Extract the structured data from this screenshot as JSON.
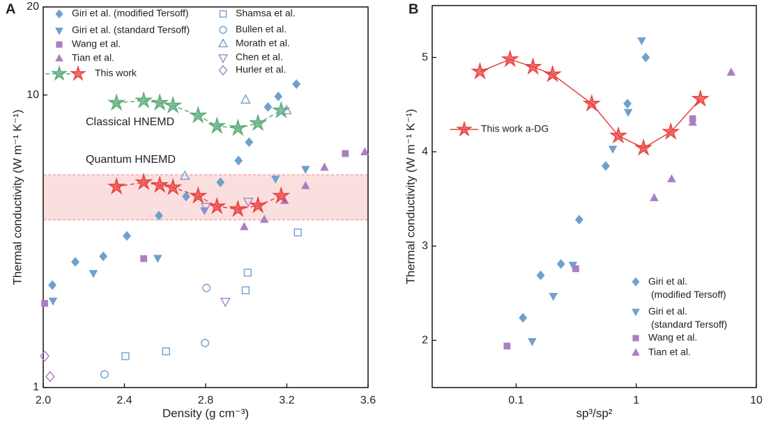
{
  "chart_data": [
    {
      "type": "scatter",
      "panel": "A",
      "xlabel": "Density (g cm⁻³)",
      "ylabel": "Thermal conductivity (W m⁻¹ K⁻¹)",
      "xlim": [
        2.0,
        3.6
      ],
      "ylim": [
        1,
        20
      ],
      "yscale": "log",
      "xticks": [
        {
          "value": 2,
          "label": "2.0"
        },
        2.4,
        2.8,
        3.2,
        3.6
      ],
      "yticks": [
        1,
        10,
        20
      ],
      "band": [
        3.74,
        5.34
      ],
      "band_color": "#e8403f",
      "annotations": [
        {
          "text": "Classical HNEMD",
          "color": "#5aa978"
        },
        {
          "text": "Quantum HNEMD",
          "color": "#e8403f"
        }
      ],
      "series": [
        {
          "name": "Giri et al. (modified Tersoff)",
          "marker": "diamond",
          "filled": true,
          "color": "#6fa0d0",
          "x": [
            2.045,
            2.158,
            2.296,
            2.412,
            2.57,
            2.704,
            2.873,
            2.962,
            3.014,
            3.107,
            3.158,
            3.247
          ],
          "values": [
            2.24,
            2.69,
            2.81,
            3.3,
            3.87,
            4.5,
            5.03,
            5.97,
            6.9,
            9.1,
            9.89,
            10.9
          ]
        },
        {
          "name": "Giri et al. (standard Tersoff)",
          "marker": "triangle-down",
          "filled": true,
          "color": "#6fa0d0",
          "x": [
            2.048,
            2.247,
            2.564,
            2.794,
            3.144,
            3.292
          ],
          "values": [
            1.98,
            2.46,
            2.77,
            4.03,
            5.17,
            5.58
          ]
        },
        {
          "name": "Wang et al.",
          "marker": "square",
          "filled": true,
          "color": "#a97fc4",
          "x": [
            2.007,
            2.495,
            3.488
          ],
          "values": [
            1.94,
            2.76,
            6.31
          ]
        },
        {
          "name": "Tian et al.",
          "marker": "triangle",
          "filled": true,
          "color": "#a97fc4",
          "x": [
            2.99,
            3.089,
            3.189,
            3.292,
            3.385,
            3.584
          ],
          "values": [
            3.54,
            3.75,
            4.35,
            4.89,
            5.65,
            6.38
          ]
        },
        {
          "name": "This work",
          "marker": "star",
          "filled": true,
          "color": "#5aa978",
          "line": "dashed",
          "x": [
            2.361,
            2.495,
            2.574,
            2.639,
            2.763,
            2.856,
            2.959,
            3.058,
            3.172
          ],
          "values": [
            9.4,
            9.57,
            9.4,
            9.2,
            8.51,
            7.83,
            7.7,
            8.01,
            8.85
          ]
        },
        {
          "marker": "star",
          "filled": true,
          "color": "#e8403f",
          "line": "dashed",
          "x": [
            2.361,
            2.495,
            2.574,
            2.639,
            2.763,
            2.856,
            2.959,
            3.058,
            3.172
          ],
          "values": [
            4.86,
            5.03,
            4.92,
            4.83,
            4.52,
            4.16,
            4.07,
            4.19,
            4.52
          ]
        },
        {
          "name": "Shamsa et al.",
          "marker": "square",
          "filled": false,
          "color": "#6fa0d0",
          "x": [
            2.405,
            2.605,
            2.997,
            3.007,
            3.254
          ],
          "values": [
            1.28,
            1.33,
            2.15,
            2.47,
            3.39
          ]
        },
        {
          "name": "Bullen et al.",
          "marker": "circle",
          "filled": false,
          "color": "#6fa0d0",
          "x": [
            2.302,
            2.797,
            2.804
          ],
          "values": [
            1.11,
            1.42,
            2.19
          ]
        },
        {
          "name": "Morath et al.",
          "marker": "triangle",
          "filled": false,
          "color": "#6fa0d0",
          "x": [
            2.698,
            2.997,
            3.199
          ],
          "values": [
            5.28,
            9.62,
            8.85
          ]
        },
        {
          "name": "Chen et al.",
          "marker": "triangle-down",
          "filled": false,
          "color": "#a97fc4",
          "x": [
            2.897,
            3.01,
            2.801
          ],
          "values": [
            1.97,
            4.33,
            4.16
          ]
        },
        {
          "name": "Hurler et al.",
          "marker": "diamond",
          "filled": false,
          "color": "#a97fc4",
          "x": [
            2.007,
            2.034
          ],
          "values": [
            1.28,
            1.09
          ]
        }
      ]
    },
    {
      "type": "scatter",
      "panel": "B",
      "xlabel": "sp³/sp²",
      "ylabel": "Thermal conductivity (W m⁻¹ K⁻¹)",
      "xlim": [
        0.02,
        10
      ],
      "ylim": [
        1.5,
        5.55
      ],
      "xscale": "log",
      "xticks": [
        0.1,
        1,
        10
      ],
      "yticks": [
        2,
        3,
        4,
        5
      ],
      "series": [
        {
          "name": "Giri et al. (modified Tersoff)",
          "marker": "diamond",
          "filled": true,
          "color": "#6fa0d0",
          "x": [
            0.114,
            0.16,
            0.236,
            0.335,
            0.557,
            0.845,
            1.2
          ],
          "values": [
            2.24,
            2.69,
            2.81,
            3.28,
            3.85,
            4.51,
            5.0
          ]
        },
        {
          "name": "Giri et al. (standard Tersoff)",
          "marker": "triangle-down",
          "filled": true,
          "color": "#6fa0d0",
          "x": [
            0.136,
            0.204,
            0.297,
            0.638,
            0.857,
            1.11
          ],
          "values": [
            1.99,
            2.47,
            2.8,
            4.03,
            4.42,
            5.18
          ]
        },
        {
          "name": "Wang et al.",
          "marker": "square",
          "filled": true,
          "color": "#a97fc4",
          "x": [
            0.084,
            0.313,
            2.95
          ],
          "values": [
            1.94,
            2.76,
            4.35
          ]
        },
        {
          "name": "Tian et al.",
          "marker": "triangle",
          "filled": true,
          "color": "#a97fc4",
          "x": [
            1.41,
            1.97,
            2.95,
            6.17
          ],
          "values": [
            3.51,
            3.71,
            4.31,
            4.84
          ]
        },
        {
          "name": "This work a-DG",
          "marker": "star",
          "filled": true,
          "color": "#e8403f",
          "line": "solid",
          "x": [
            0.05,
            0.089,
            0.138,
            0.201,
            0.426,
            0.71,
            1.15,
            1.94,
            3.42
          ],
          "values": [
            4.85,
            4.98,
            4.9,
            4.82,
            4.51,
            4.17,
            4.04,
            4.21,
            4.56
          ]
        }
      ]
    }
  ]
}
